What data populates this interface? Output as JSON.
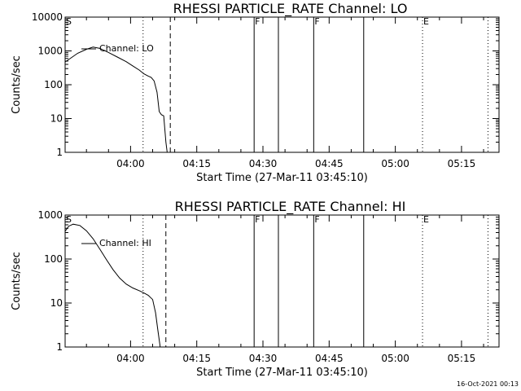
{
  "footer": "16-Oct-2021 00:13",
  "chart_data": [
    {
      "type": "line",
      "title": "RHESSI PARTICLE_RATE Channel: LO",
      "xlabel": "Start Time (27-Mar-11 03:45:10)",
      "ylabel": "Counts/sec",
      "y_scale": "log",
      "ylim": [
        1,
        10000
      ],
      "y_ticks": [
        1,
        10,
        100,
        1000,
        10000
      ],
      "y_tick_labels": [
        "1",
        "10",
        "100",
        "1000",
        "10000"
      ],
      "xlim": [
        "03:45:10",
        "05:23:30"
      ],
      "x_ticks": [
        "04:00",
        "04:15",
        "04:30",
        "04:45",
        "05:00",
        "05:15"
      ],
      "x_tick_labels": [
        "04:00",
        "04:15",
        "04:30",
        "04:45",
        "05:00",
        "05:15"
      ],
      "legend": {
        "entries": [
          "Channel: LO"
        ],
        "position": "top-left"
      },
      "series": [
        {
          "name": "Channel: LO",
          "x": [
            "03:45:10",
            "03:46:00",
            "03:48:00",
            "03:50:00",
            "03:51:30",
            "03:53:00",
            "03:55:00",
            "03:57:00",
            "03:59:00",
            "04:00:30",
            "04:02:00",
            "04:03:00",
            "04:04:00",
            "04:04:40",
            "04:05:20",
            "04:06:00",
            "04:06:30",
            "04:07:00",
            "04:07:30",
            "04:08:00",
            "04:08:30"
          ],
          "y": [
            470,
            560,
            850,
            1120,
            1300,
            1190,
            900,
            660,
            480,
            360,
            270,
            210,
            180,
            165,
            130,
            60,
            16,
            13,
            12,
            2,
            0.6
          ]
        }
      ],
      "markers": [
        {
          "time": "04:02:50",
          "style": "dotted",
          "label": ""
        },
        {
          "time": "04:09:00",
          "style": "dashed",
          "label": ""
        },
        {
          "time": "04:28:00",
          "style": "solid",
          "label": "F"
        },
        {
          "time": "04:33:30",
          "style": "solid",
          "label": ""
        },
        {
          "time": "04:41:30",
          "style": "solid",
          "label": "F"
        },
        {
          "time": "04:52:50",
          "style": "solid",
          "label": ""
        },
        {
          "time": "05:06:10",
          "style": "dotted",
          "label": "E"
        },
        {
          "time": "05:21:00",
          "style": "dotted",
          "label": ""
        }
      ],
      "start_marker": "S"
    },
    {
      "type": "line",
      "title": "RHESSI PARTICLE_RATE Channel: HI",
      "xlabel": "Start Time (27-Mar-11 03:45:10)",
      "ylabel": "Counts/sec",
      "y_scale": "log",
      "ylim": [
        1,
        1000
      ],
      "y_ticks": [
        1,
        10,
        100,
        1000
      ],
      "y_tick_labels": [
        "1",
        "10",
        "100",
        "1000"
      ],
      "xlim": [
        "03:45:10",
        "05:23:30"
      ],
      "x_ticks": [
        "04:00",
        "04:15",
        "04:30",
        "04:45",
        "05:00",
        "05:15"
      ],
      "x_tick_labels": [
        "04:00",
        "04:15",
        "04:30",
        "04:45",
        "05:00",
        "05:15"
      ],
      "legend": {
        "entries": [
          "Channel: HI"
        ],
        "position": "top-left"
      },
      "series": [
        {
          "name": "Channel: HI",
          "x": [
            "03:45:10",
            "03:46:00",
            "03:47:00",
            "03:48:30",
            "03:50:00",
            "03:51:30",
            "03:53:00",
            "03:54:30",
            "03:56:00",
            "03:57:30",
            "03:59:00",
            "04:00:30",
            "04:02:00",
            "04:03:00",
            "04:04:00",
            "04:05:00",
            "04:05:40",
            "04:06:10",
            "04:06:40",
            "04:07:00"
          ],
          "y": [
            430,
            560,
            620,
            580,
            440,
            290,
            170,
            98,
            58,
            37,
            27,
            22,
            19,
            17,
            15,
            12,
            6,
            2.5,
            1.1,
            0.5
          ]
        }
      ],
      "markers": [
        {
          "time": "04:02:50",
          "style": "dotted",
          "label": ""
        },
        {
          "time": "04:08:00",
          "style": "dashed",
          "label": ""
        },
        {
          "time": "04:28:00",
          "style": "solid",
          "label": "F"
        },
        {
          "time": "04:33:30",
          "style": "solid",
          "label": ""
        },
        {
          "time": "04:41:30",
          "style": "solid",
          "label": "F"
        },
        {
          "time": "04:52:50",
          "style": "solid",
          "label": ""
        },
        {
          "time": "05:06:10",
          "style": "dotted",
          "label": "E"
        },
        {
          "time": "05:21:00",
          "style": "dotted",
          "label": ""
        }
      ],
      "start_marker": "S"
    }
  ]
}
